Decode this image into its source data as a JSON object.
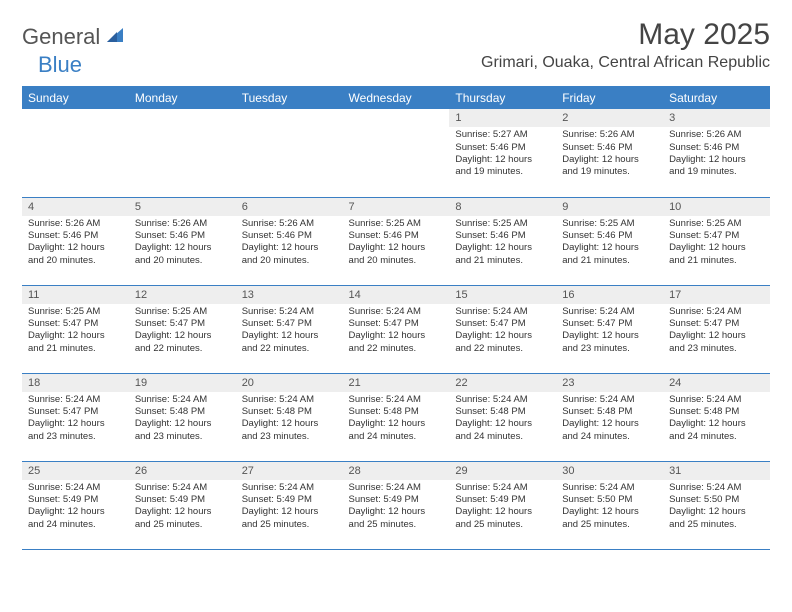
{
  "brand": {
    "part1": "General",
    "part2": "Blue"
  },
  "title": "May 2025",
  "location": "Grimari, Ouaka, Central African Republic",
  "colors": {
    "header_bg": "#3a7fc4",
    "header_text": "#ffffff",
    "daynum_bg": "#eeeeee",
    "border": "#3a7fc4",
    "text": "#333333",
    "title_text": "#444444"
  },
  "weekdays": [
    "Sunday",
    "Monday",
    "Tuesday",
    "Wednesday",
    "Thursday",
    "Friday",
    "Saturday"
  ],
  "leading_blanks": 4,
  "days": [
    {
      "n": 1,
      "sunrise": "5:27 AM",
      "sunset": "5:46 PM",
      "dl_h": 12,
      "dl_m": 19
    },
    {
      "n": 2,
      "sunrise": "5:26 AM",
      "sunset": "5:46 PM",
      "dl_h": 12,
      "dl_m": 19
    },
    {
      "n": 3,
      "sunrise": "5:26 AM",
      "sunset": "5:46 PM",
      "dl_h": 12,
      "dl_m": 19
    },
    {
      "n": 4,
      "sunrise": "5:26 AM",
      "sunset": "5:46 PM",
      "dl_h": 12,
      "dl_m": 20
    },
    {
      "n": 5,
      "sunrise": "5:26 AM",
      "sunset": "5:46 PM",
      "dl_h": 12,
      "dl_m": 20
    },
    {
      "n": 6,
      "sunrise": "5:26 AM",
      "sunset": "5:46 PM",
      "dl_h": 12,
      "dl_m": 20
    },
    {
      "n": 7,
      "sunrise": "5:25 AM",
      "sunset": "5:46 PM",
      "dl_h": 12,
      "dl_m": 20
    },
    {
      "n": 8,
      "sunrise": "5:25 AM",
      "sunset": "5:46 PM",
      "dl_h": 12,
      "dl_m": 21
    },
    {
      "n": 9,
      "sunrise": "5:25 AM",
      "sunset": "5:46 PM",
      "dl_h": 12,
      "dl_m": 21
    },
    {
      "n": 10,
      "sunrise": "5:25 AM",
      "sunset": "5:47 PM",
      "dl_h": 12,
      "dl_m": 21
    },
    {
      "n": 11,
      "sunrise": "5:25 AM",
      "sunset": "5:47 PM",
      "dl_h": 12,
      "dl_m": 21
    },
    {
      "n": 12,
      "sunrise": "5:25 AM",
      "sunset": "5:47 PM",
      "dl_h": 12,
      "dl_m": 22
    },
    {
      "n": 13,
      "sunrise": "5:24 AM",
      "sunset": "5:47 PM",
      "dl_h": 12,
      "dl_m": 22
    },
    {
      "n": 14,
      "sunrise": "5:24 AM",
      "sunset": "5:47 PM",
      "dl_h": 12,
      "dl_m": 22
    },
    {
      "n": 15,
      "sunrise": "5:24 AM",
      "sunset": "5:47 PM",
      "dl_h": 12,
      "dl_m": 22
    },
    {
      "n": 16,
      "sunrise": "5:24 AM",
      "sunset": "5:47 PM",
      "dl_h": 12,
      "dl_m": 23
    },
    {
      "n": 17,
      "sunrise": "5:24 AM",
      "sunset": "5:47 PM",
      "dl_h": 12,
      "dl_m": 23
    },
    {
      "n": 18,
      "sunrise": "5:24 AM",
      "sunset": "5:47 PM",
      "dl_h": 12,
      "dl_m": 23
    },
    {
      "n": 19,
      "sunrise": "5:24 AM",
      "sunset": "5:48 PM",
      "dl_h": 12,
      "dl_m": 23
    },
    {
      "n": 20,
      "sunrise": "5:24 AM",
      "sunset": "5:48 PM",
      "dl_h": 12,
      "dl_m": 23
    },
    {
      "n": 21,
      "sunrise": "5:24 AM",
      "sunset": "5:48 PM",
      "dl_h": 12,
      "dl_m": 24
    },
    {
      "n": 22,
      "sunrise": "5:24 AM",
      "sunset": "5:48 PM",
      "dl_h": 12,
      "dl_m": 24
    },
    {
      "n": 23,
      "sunrise": "5:24 AM",
      "sunset": "5:48 PM",
      "dl_h": 12,
      "dl_m": 24
    },
    {
      "n": 24,
      "sunrise": "5:24 AM",
      "sunset": "5:48 PM",
      "dl_h": 12,
      "dl_m": 24
    },
    {
      "n": 25,
      "sunrise": "5:24 AM",
      "sunset": "5:49 PM",
      "dl_h": 12,
      "dl_m": 24
    },
    {
      "n": 26,
      "sunrise": "5:24 AM",
      "sunset": "5:49 PM",
      "dl_h": 12,
      "dl_m": 25
    },
    {
      "n": 27,
      "sunrise": "5:24 AM",
      "sunset": "5:49 PM",
      "dl_h": 12,
      "dl_m": 25
    },
    {
      "n": 28,
      "sunrise": "5:24 AM",
      "sunset": "5:49 PM",
      "dl_h": 12,
      "dl_m": 25
    },
    {
      "n": 29,
      "sunrise": "5:24 AM",
      "sunset": "5:49 PM",
      "dl_h": 12,
      "dl_m": 25
    },
    {
      "n": 30,
      "sunrise": "5:24 AM",
      "sunset": "5:50 PM",
      "dl_h": 12,
      "dl_m": 25
    },
    {
      "n": 31,
      "sunrise": "5:24 AM",
      "sunset": "5:50 PM",
      "dl_h": 12,
      "dl_m": 25
    }
  ],
  "labels": {
    "sunrise": "Sunrise:",
    "sunset": "Sunset:",
    "daylight_prefix": "Daylight:",
    "hours_word": "hours",
    "and_word": "and",
    "minutes_word": "minutes."
  }
}
